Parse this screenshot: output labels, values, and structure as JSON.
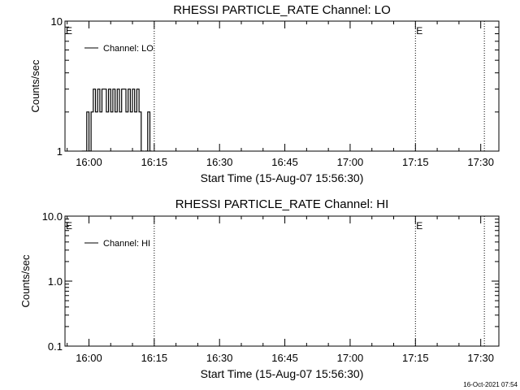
{
  "footer_timestamp": "16-Oct-2021 07:54",
  "chart_data": [
    {
      "type": "line",
      "title": "RHESSI PARTICLE_RATE Channel: LO",
      "xlabel": "Start Time (15-Aug-07 15:56:30)",
      "ylabel": "Counts/sec",
      "x_unit": "seconds since 15:56:30",
      "xlim": [
        -120,
        5860
      ],
      "xticks": [
        {
          "t": 210,
          "label": "16:00"
        },
        {
          "t": 1110,
          "label": "16:15"
        },
        {
          "t": 2010,
          "label": "16:30"
        },
        {
          "t": 2910,
          "label": "16:45"
        },
        {
          "t": 3810,
          "label": "17:00"
        },
        {
          "t": 4710,
          "label": "17:15"
        },
        {
          "t": 5610,
          "label": "17:30"
        }
      ],
      "yscale": "log",
      "ylim": [
        1,
        10
      ],
      "yticks": [
        {
          "v": 1,
          "label": "1"
        },
        {
          "v": 10,
          "label": "10"
        }
      ],
      "legend": {
        "entries": [
          "Channel: LO"
        ],
        "position": "top-left"
      },
      "markers": [
        {
          "t": 1110,
          "label": ""
        },
        {
          "t": 4710,
          "label": "E"
        },
        {
          "t": 5660,
          "label": ""
        }
      ],
      "edge_label": "E",
      "series": [
        {
          "name": "Channel: LO",
          "x": [
            0,
            30,
            60,
            90,
            120,
            150,
            180,
            210,
            240,
            270,
            300,
            330,
            360,
            390,
            420,
            450,
            480,
            510,
            540,
            570,
            600,
            630,
            660,
            690,
            720,
            750,
            780,
            810,
            840,
            870,
            900,
            930,
            960,
            990,
            1020,
            1050
          ],
          "y": [
            0,
            0,
            0,
            0,
            1,
            1,
            2,
            1,
            2,
            3,
            2,
            3,
            2,
            3,
            3,
            2,
            3,
            2,
            3,
            2,
            3,
            2,
            3,
            3,
            2,
            3,
            2,
            3,
            2,
            3,
            2,
            1,
            0,
            1,
            2,
            1
          ]
        }
      ]
    },
    {
      "type": "line",
      "title": "RHESSI PARTICLE_RATE Channel: HI",
      "xlabel": "Start Time (15-Aug-07 15:56:30)",
      "ylabel": "Counts/sec",
      "x_unit": "seconds since 15:56:30",
      "xlim": [
        -120,
        5860
      ],
      "xticks": [
        {
          "t": 210,
          "label": "16:00"
        },
        {
          "t": 1110,
          "label": "16:15"
        },
        {
          "t": 2010,
          "label": "16:30"
        },
        {
          "t": 2910,
          "label": "16:45"
        },
        {
          "t": 3810,
          "label": "17:00"
        },
        {
          "t": 4710,
          "label": "17:15"
        },
        {
          "t": 5610,
          "label": "17:30"
        }
      ],
      "yscale": "log",
      "ylim": [
        0.1,
        10
      ],
      "yticks": [
        {
          "v": 0.1,
          "label": "0.1"
        },
        {
          "v": 1,
          "label": "1.0"
        },
        {
          "v": 10,
          "label": "10.0"
        }
      ],
      "legend": {
        "entries": [
          "Channel: HI"
        ],
        "position": "top-left"
      },
      "markers": [
        {
          "t": 1110,
          "label": ""
        },
        {
          "t": 4710,
          "label": "E"
        },
        {
          "t": 5660,
          "label": ""
        }
      ],
      "edge_label": "E",
      "series": [
        {
          "name": "Channel: HI",
          "x": [],
          "y": []
        }
      ]
    }
  ]
}
